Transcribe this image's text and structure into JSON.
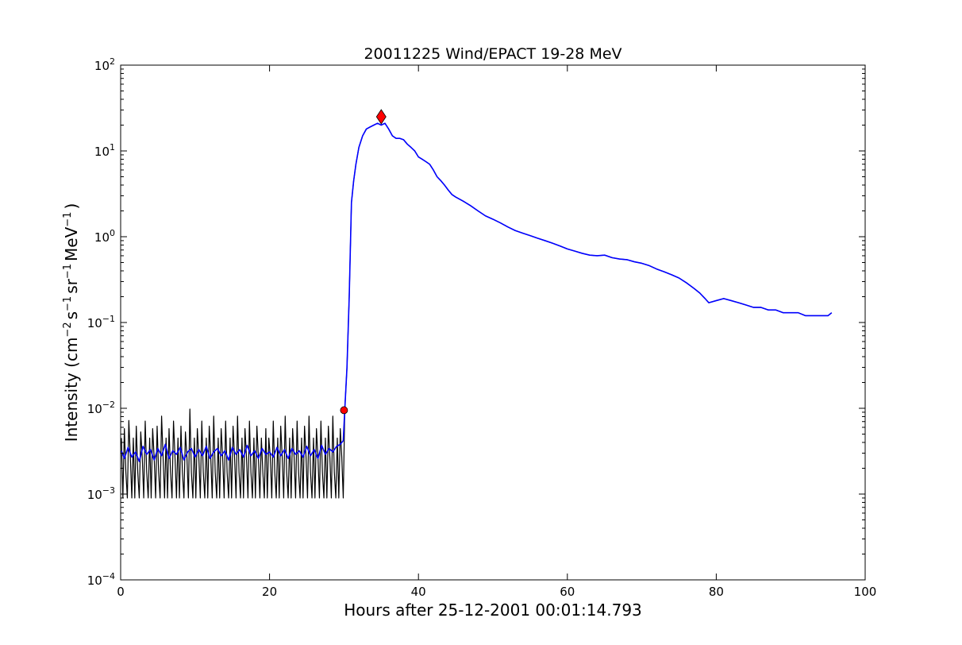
{
  "chart_data": {
    "type": "line",
    "title": "20011225 Wind/EPACT 19-28 MeV",
    "xlabel": "Hours after 25-12-2001 00:01:14.793",
    "ylabel": {
      "prefix": "Intensity (cm",
      "parts": [
        {
          "base": "cm",
          "exp": "−2"
        },
        {
          "base": "s",
          "exp": "−1"
        },
        {
          "base": "sr",
          "exp": "−1"
        },
        {
          "base": "MeV",
          "exp": "−1"
        }
      ],
      "suffix": ")"
    },
    "xlim": [
      0,
      100
    ],
    "ylim": [
      0.0001,
      100
    ],
    "yscale": "log",
    "grid": false,
    "xticks": [
      0,
      20,
      40,
      60,
      80,
      100
    ],
    "yticks": [
      {
        "base": "10",
        "exp": "−4",
        "value": 0.0001
      },
      {
        "base": "10",
        "exp": "−3",
        "value": 0.001
      },
      {
        "base": "10",
        "exp": "−2",
        "value": 0.01
      },
      {
        "base": "10",
        "exp": "−1",
        "value": 0.1
      },
      {
        "base": "10",
        "exp": "0",
        "value": 1
      },
      {
        "base": "10",
        "exp": "1",
        "value": 10
      },
      {
        "base": "10",
        "exp": "2",
        "value": 100
      }
    ],
    "series": [
      {
        "style": "raw",
        "color": "#000000",
        "x": [
          0.1,
          0.3,
          0.5,
          0.7,
          0.9,
          1.1,
          1.3,
          1.5,
          1.7,
          1.9,
          2.1,
          2.3,
          2.5,
          2.7,
          2.9,
          3.1,
          3.3,
          3.5,
          3.7,
          3.9,
          4.1,
          4.3,
          4.5,
          4.7,
          4.9,
          5.1,
          5.3,
          5.5,
          5.7,
          5.9,
          6.1,
          6.3,
          6.5,
          6.7,
          6.9,
          7.1,
          7.3,
          7.5,
          7.7,
          7.9,
          8.1,
          8.3,
          8.5,
          8.7,
          8.9,
          9.1,
          9.3,
          9.5,
          9.7,
          9.9,
          10.1,
          10.3,
          10.5,
          10.7,
          10.9,
          11.1,
          11.3,
          11.5,
          11.7,
          11.9,
          12.1,
          12.3,
          12.5,
          12.7,
          12.9,
          13.1,
          13.3,
          13.5,
          13.7,
          13.9,
          14.1,
          14.3,
          14.5,
          14.7,
          14.9,
          15.1,
          15.3,
          15.5,
          15.7,
          15.9,
          16.1,
          16.3,
          16.5,
          16.7,
          16.9,
          17.1,
          17.3,
          17.5,
          17.7,
          17.9,
          18.1,
          18.3,
          18.5,
          18.7,
          18.9,
          19.1,
          19.3,
          19.5,
          19.7,
          19.9,
          20.1,
          20.3,
          20.5,
          20.7,
          20.9,
          21.1,
          21.3,
          21.5,
          21.7,
          21.9,
          22.1,
          22.3,
          22.5,
          22.7,
          22.9,
          23.1,
          23.3,
          23.5,
          23.7,
          23.9,
          24.1,
          24.3,
          24.5,
          24.7,
          24.9,
          25.1,
          25.3,
          25.5,
          25.7,
          25.9,
          26.1,
          26.3,
          26.5,
          26.7,
          26.9,
          27.1,
          27.3,
          27.5,
          27.7,
          27.9,
          28.1,
          28.3,
          28.5,
          28.7,
          28.9,
          29.1,
          29.3,
          29.5,
          29.7,
          29.9,
          30.1,
          30.4,
          30.7,
          31.0,
          31.3,
          31.6,
          32.0,
          32.5,
          33.0,
          33.5,
          34.0,
          34.5,
          35.0,
          35.5,
          36.0,
          36.5,
          37.0,
          37.5,
          38.0,
          38.5,
          39.0,
          39.5,
          40.0,
          40.5,
          41.0,
          41.5,
          42.0,
          42.5,
          43.0,
          43.5,
          44.0,
          44.5,
          45.0,
          46.0,
          47.0,
          48.0,
          49.0,
          50.0,
          51.0,
          52.0,
          53.0,
          54.0,
          55.0,
          56.0,
          57.0,
          58.0,
          59.0,
          60.0,
          61.0,
          62.0,
          63.0,
          64.0,
          65.0,
          66.0,
          67.0,
          68.0,
          69.0,
          70.0,
          71.0,
          72.0,
          73.0,
          74.0,
          75.0,
          76.0,
          77.0,
          77.8,
          78.5,
          79.0,
          80.0,
          81.0,
          82.0,
          83.0,
          84.0,
          85.0,
          86.0,
          87.0,
          88.0,
          89.0,
          90.0,
          91.0,
          92.0,
          93.0,
          94.0,
          95.0,
          95.5
        ],
        "y": [
          0.0045,
          0.0009,
          0.0058,
          0.0018,
          0.0009,
          0.0072,
          0.0027,
          0.0009,
          0.0045,
          0.0009,
          0.0062,
          0.0018,
          0.0009,
          0.0053,
          0.0027,
          0.0009,
          0.0071,
          0.0018,
          0.0009,
          0.0045,
          0.0009,
          0.0058,
          0.0027,
          0.0009,
          0.0062,
          0.0018,
          0.0009,
          0.0081,
          0.0027,
          0.0009,
          0.0045,
          0.0009,
          0.0058,
          0.0018,
          0.0009,
          0.0071,
          0.0027,
          0.0009,
          0.0045,
          0.0009,
          0.0062,
          0.0018,
          0.0009,
          0.0053,
          0.0027,
          0.0009,
          0.0098,
          0.0018,
          0.0009,
          0.0045,
          0.0009,
          0.0058,
          0.0027,
          0.0009,
          0.0071,
          0.0018,
          0.0009,
          0.0045,
          0.0009,
          0.0062,
          0.0027,
          0.0009,
          0.0081,
          0.0018,
          0.0009,
          0.0045,
          0.0009,
          0.0058,
          0.0027,
          0.0009,
          0.0071,
          0.0018,
          0.0009,
          0.0045,
          0.0009,
          0.0062,
          0.0027,
          0.0009,
          0.0081,
          0.0018,
          0.0009,
          0.0045,
          0.0009,
          0.0058,
          0.0027,
          0.0009,
          0.0071,
          0.0018,
          0.0009,
          0.0045,
          0.0009,
          0.0062,
          0.0027,
          0.0009,
          0.0045,
          0.0018,
          0.0009,
          0.0058,
          0.0009,
          0.0045,
          0.0027,
          0.0009,
          0.0071,
          0.0018,
          0.0009,
          0.0045,
          0.0009,
          0.0062,
          0.0027,
          0.0009,
          0.0081,
          0.0018,
          0.0009,
          0.0045,
          0.0009,
          0.0058,
          0.0027,
          0.0009,
          0.0071,
          0.0018,
          0.0009,
          0.0045,
          0.0009,
          0.0062,
          0.0027,
          0.0009,
          0.0081,
          0.0018,
          0.0009,
          0.0045,
          0.0009,
          0.0058,
          0.0027,
          0.0009,
          0.0071,
          0.0018,
          0.0009,
          0.0045,
          0.0009,
          0.0062,
          0.0027,
          0.0009,
          0.0081,
          0.0018,
          0.0009,
          0.0045,
          0.0009,
          0.0058,
          0.0027,
          0.0009,
          0.0095,
          0.03,
          0.2,
          2.5,
          4.5,
          7.0,
          11.0,
          15.0,
          18.0,
          19.0,
          20.0,
          21.0,
          20.0,
          21.0,
          18.0,
          15.0,
          14.0,
          14.0,
          13.5,
          12.0,
          11.0,
          10.0,
          8.5,
          8.0,
          7.5,
          7.0,
          6.0,
          5.0,
          4.5,
          4.0,
          3.5,
          3.1,
          2.9,
          2.6,
          2.3,
          2.0,
          1.75,
          1.6,
          1.45,
          1.3,
          1.18,
          1.1,
          1.03,
          0.96,
          0.9,
          0.84,
          0.78,
          0.72,
          0.68,
          0.64,
          0.61,
          0.6,
          0.61,
          0.57,
          0.55,
          0.54,
          0.51,
          0.49,
          0.46,
          0.42,
          0.39,
          0.36,
          0.33,
          0.29,
          0.25,
          0.22,
          0.19,
          0.17,
          0.18,
          0.19,
          0.18,
          0.17,
          0.16,
          0.15,
          0.15,
          0.14,
          0.14,
          0.13,
          0.13,
          0.13,
          0.12,
          0.12,
          0.12,
          0.12,
          0.13
        ]
      },
      {
        "style": "smoothed",
        "color": "#0000ff",
        "x": [
          0.1,
          0.5,
          1.0,
          1.5,
          2.0,
          2.5,
          3.0,
          3.5,
          4.0,
          4.5,
          5.0,
          5.5,
          6.0,
          6.5,
          7.0,
          7.5,
          8.0,
          8.5,
          9.0,
          9.5,
          10.0,
          10.5,
          11.0,
          11.5,
          12.0,
          12.5,
          13.0,
          13.5,
          14.0,
          14.5,
          15.0,
          15.5,
          16.0,
          16.5,
          17.0,
          17.5,
          18.0,
          18.5,
          19.0,
          19.5,
          20.0,
          20.5,
          21.0,
          21.5,
          22.0,
          22.5,
          23.0,
          23.5,
          24.0,
          24.5,
          25.0,
          25.5,
          26.0,
          26.5,
          27.0,
          27.5,
          28.0,
          28.5,
          29.0,
          29.5,
          29.9,
          30.1,
          30.4,
          30.7,
          31.0,
          31.3,
          31.6,
          32.0,
          32.5,
          33.0,
          33.5,
          34.0,
          34.5,
          35.0,
          35.5,
          36.0,
          36.5,
          37.0,
          37.5,
          38.0,
          38.5,
          39.0,
          39.5,
          40.0,
          40.5,
          41.0,
          41.5,
          42.0,
          42.5,
          43.0,
          43.5,
          44.0,
          44.5,
          45.0,
          46.0,
          47.0,
          48.0,
          49.0,
          50.0,
          51.0,
          52.0,
          53.0,
          54.0,
          55.0,
          56.0,
          57.0,
          58.0,
          59.0,
          60.0,
          61.0,
          62.0,
          63.0,
          64.0,
          65.0,
          66.0,
          67.0,
          68.0,
          69.0,
          70.0,
          71.0,
          72.0,
          73.0,
          74.0,
          75.0,
          76.0,
          77.0,
          77.8,
          78.5,
          79.0,
          80.0,
          81.0,
          82.0,
          83.0,
          84.0,
          85.0,
          86.0,
          87.0,
          88.0,
          89.0,
          90.0,
          91.0,
          92.0,
          93.0,
          94.0,
          95.0,
          95.5
        ],
        "y": [
          0.0032,
          0.0026,
          0.0035,
          0.0027,
          0.0031,
          0.0024,
          0.0036,
          0.0029,
          0.0033,
          0.0025,
          0.0034,
          0.0028,
          0.0038,
          0.0026,
          0.0032,
          0.0029,
          0.0035,
          0.0025,
          0.0031,
          0.0034,
          0.0027,
          0.0033,
          0.0028,
          0.0036,
          0.0026,
          0.0031,
          0.0034,
          0.0028,
          0.0032,
          0.0025,
          0.0035,
          0.0029,
          0.0033,
          0.0027,
          0.0037,
          0.0028,
          0.0032,
          0.0026,
          0.0034,
          0.0029,
          0.0031,
          0.0027,
          0.0035,
          0.0028,
          0.0033,
          0.0026,
          0.0034,
          0.0029,
          0.0032,
          0.0027,
          0.0036,
          0.0028,
          0.0033,
          0.0026,
          0.0037,
          0.0029,
          0.0034,
          0.0031,
          0.0036,
          0.0038,
          0.0042,
          0.0095,
          0.03,
          0.2,
          2.5,
          4.5,
          7.0,
          11.0,
          15.0,
          18.0,
          19.0,
          20.0,
          21.0,
          20.0,
          21.0,
          18.0,
          15.0,
          14.0,
          14.0,
          13.5,
          12.0,
          11.0,
          10.0,
          8.5,
          8.0,
          7.5,
          7.0,
          6.0,
          5.0,
          4.5,
          4.0,
          3.5,
          3.1,
          2.9,
          2.6,
          2.3,
          2.0,
          1.75,
          1.6,
          1.45,
          1.3,
          1.18,
          1.1,
          1.03,
          0.96,
          0.9,
          0.84,
          0.78,
          0.72,
          0.68,
          0.64,
          0.61,
          0.6,
          0.61,
          0.57,
          0.55,
          0.54,
          0.51,
          0.49,
          0.46,
          0.42,
          0.39,
          0.36,
          0.33,
          0.29,
          0.25,
          0.22,
          0.19,
          0.17,
          0.18,
          0.19,
          0.18,
          0.17,
          0.16,
          0.15,
          0.15,
          0.14,
          0.14,
          0.13,
          0.13,
          0.13,
          0.12,
          0.12,
          0.12,
          0.12,
          0.13
        ]
      }
    ],
    "markers": [
      {
        "shape": "circle",
        "color": "#ff0000",
        "x": 30.0,
        "y": 0.0095
      },
      {
        "shape": "diamond",
        "color": "#ff0000",
        "x": 35.0,
        "y": 25.0
      }
    ]
  }
}
